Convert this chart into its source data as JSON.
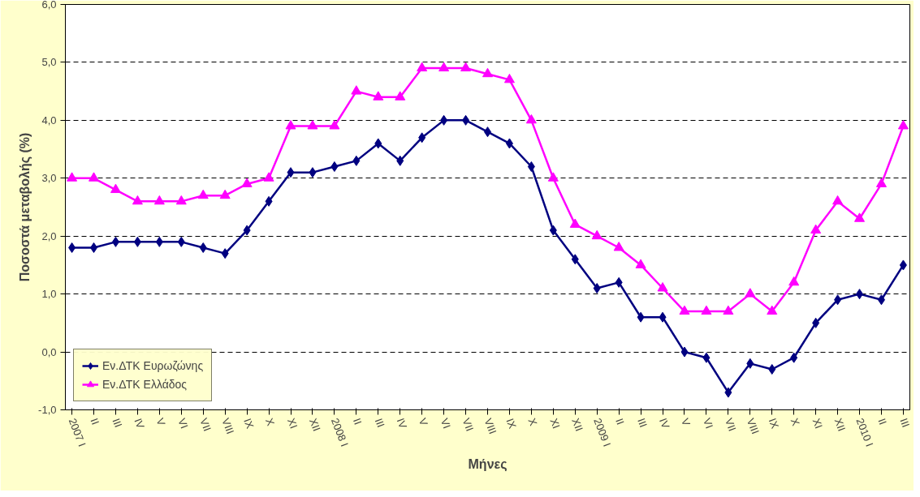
{
  "chart_data": {
    "type": "line",
    "xlabel": "Μήνες",
    "ylabel": "Ποσοστά μεταβολής (%)",
    "categories": [
      "2007 I",
      "II",
      "III",
      "IV",
      "V",
      "VI",
      "VII",
      "VIII",
      "IX",
      "X",
      "XI",
      "XII",
      "2008 I",
      "II",
      "III",
      "IV",
      "V",
      "VI",
      "VII",
      "VIII",
      "IX",
      "X",
      "XI",
      "XII",
      "2009 I",
      "II",
      "III",
      "IV",
      "V",
      "VI",
      "VII",
      "VIII",
      "IX",
      "X",
      "XI",
      "XII",
      "2010 I",
      "II",
      "III"
    ],
    "series": [
      {
        "name": "Εν.ΔΤΚ Ευρωζώνης",
        "color": "#000080",
        "marker": "diamond",
        "values": [
          1.8,
          1.8,
          1.9,
          1.9,
          1.9,
          1.9,
          1.8,
          1.7,
          2.1,
          2.6,
          3.1,
          3.1,
          3.2,
          3.3,
          3.6,
          3.3,
          3.7,
          4.0,
          4.0,
          3.8,
          3.6,
          3.2,
          2.1,
          1.6,
          1.1,
          1.2,
          0.6,
          0.6,
          0.0,
          -0.1,
          -0.7,
          -0.2,
          -0.3,
          -0.1,
          0.5,
          0.9,
          1.0,
          0.9,
          1.5
        ]
      },
      {
        "name": "Εν.ΔΤΚ Ελλάδος",
        "color": "#ff00ff",
        "marker": "triangle",
        "values": [
          3.0,
          3.0,
          2.8,
          2.6,
          2.6,
          2.6,
          2.7,
          2.7,
          2.9,
          3.0,
          3.9,
          3.9,
          3.9,
          4.5,
          4.4,
          4.4,
          4.9,
          4.9,
          4.9,
          4.8,
          4.7,
          4.0,
          3.0,
          2.2,
          2.0,
          1.8,
          1.5,
          1.1,
          0.7,
          0.7,
          0.7,
          1.0,
          0.7,
          1.2,
          2.1,
          2.6,
          2.3,
          2.9,
          3.9
        ]
      }
    ],
    "ylim": [
      -1,
      6
    ],
    "yticks": [
      {
        "value": -1,
        "label": "-1,0"
      },
      {
        "value": 0,
        "label": "0,0"
      },
      {
        "value": 1,
        "label": "1,0"
      },
      {
        "value": 2,
        "label": "2,0"
      },
      {
        "value": 3,
        "label": "3,0"
      },
      {
        "value": 4,
        "label": "4,0"
      },
      {
        "value": 5,
        "label": "5,0"
      },
      {
        "value": 6,
        "label": "6,0"
      }
    ],
    "grid": "y",
    "line_style": "solid",
    "legend": "bottom left"
  }
}
